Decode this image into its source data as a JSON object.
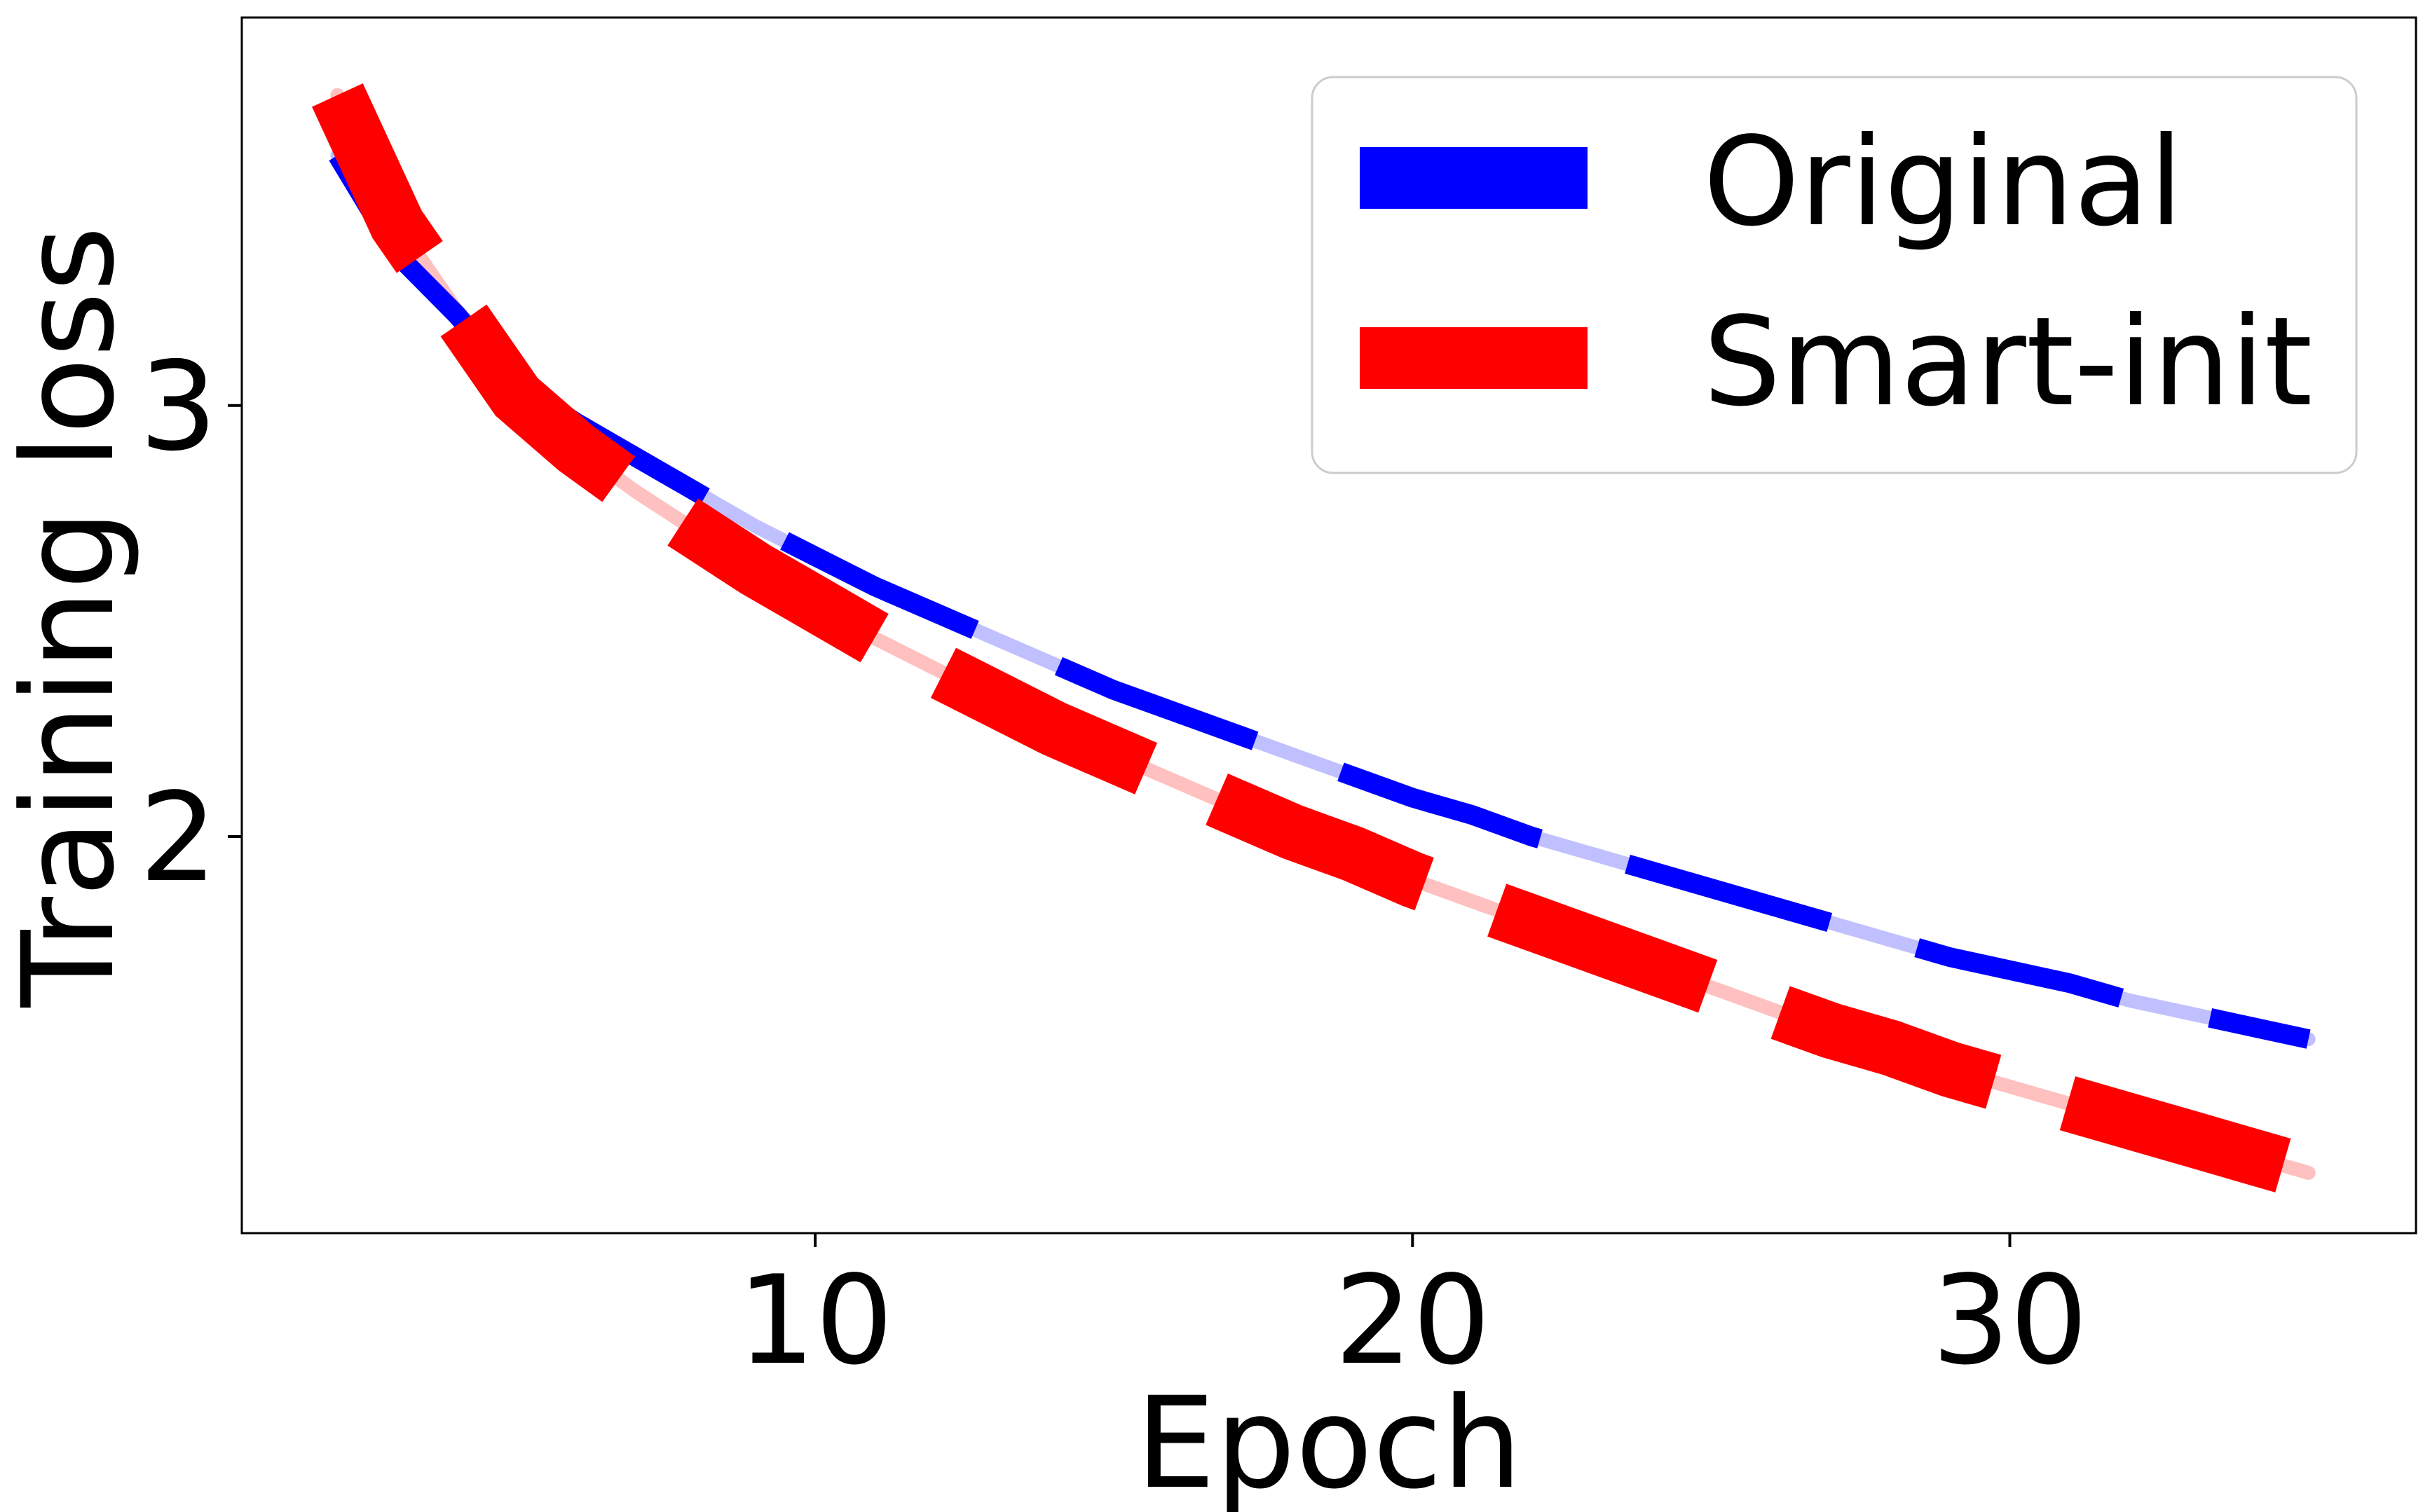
{
  "chart_data": {
    "type": "line",
    "title": "",
    "xlabel": "Epoch",
    "ylabel": "Training loss",
    "xlim": [
      0.4,
      36.8
    ],
    "ylim": [
      1.08,
      3.9
    ],
    "xticks": [
      10,
      20,
      30
    ],
    "yticks": [
      2,
      3
    ],
    "grid": false,
    "legend_position": "top-right",
    "x": [
      2,
      3,
      4,
      5,
      6,
      7,
      8,
      9,
      10,
      11,
      12,
      13,
      14,
      15,
      16,
      17,
      18,
      19,
      20,
      21,
      22,
      23,
      24,
      25,
      26,
      27,
      28,
      29,
      30,
      31,
      32,
      33,
      34,
      35
    ],
    "series": [
      {
        "name": "Original",
        "color": "#0000ff",
        "faint_color": "#c0c0ff",
        "values": [
          3.58,
          3.35,
          3.21,
          3.05,
          2.96,
          2.88,
          2.8,
          2.72,
          2.65,
          2.58,
          2.52,
          2.46,
          2.4,
          2.34,
          2.29,
          2.24,
          2.19,
          2.14,
          2.09,
          2.05,
          2.0,
          1.96,
          1.92,
          1.88,
          1.84,
          1.8,
          1.76,
          1.72,
          1.69,
          1.66,
          1.62,
          1.59,
          1.56,
          1.53
        ]
      },
      {
        "name": "Smart-init",
        "color": "#ff0000",
        "faint_color": "#ffc0c0",
        "values": [
          3.72,
          3.42,
          3.22,
          3.02,
          2.9,
          2.8,
          2.71,
          2.62,
          2.54,
          2.46,
          2.39,
          2.32,
          2.25,
          2.19,
          2.13,
          2.07,
          2.01,
          1.96,
          1.9,
          1.85,
          1.8,
          1.75,
          1.7,
          1.65,
          1.6,
          1.55,
          1.51,
          1.46,
          1.42,
          1.38,
          1.34,
          1.3,
          1.26,
          1.22
        ]
      }
    ]
  }
}
